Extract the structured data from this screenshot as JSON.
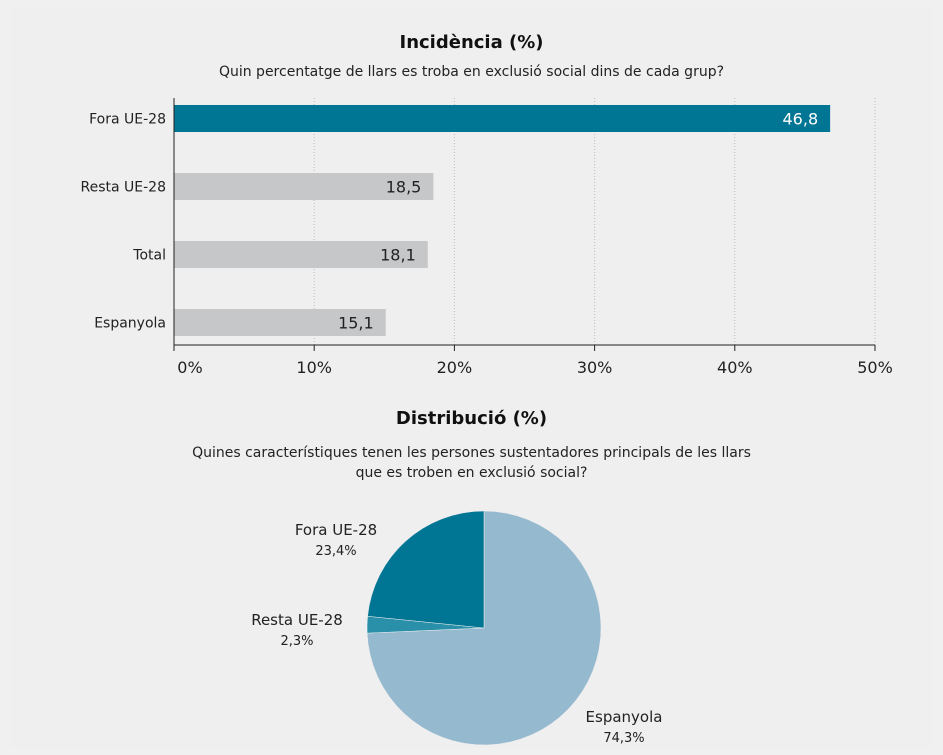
{
  "chart_data": [
    {
      "type": "bar",
      "orientation": "horizontal",
      "title": "Incidència (%)",
      "subtitle": "Quin percentatge de llars es troba en exclusió social dins de cada grup?",
      "categories": [
        "Fora UE-28",
        "Resta UE-28",
        "Total",
        "Espanyola"
      ],
      "values": [
        46.8,
        18.5,
        18.1,
        15.1
      ],
      "value_labels": [
        "46,8",
        "18,5",
        "18,1",
        "15,1"
      ],
      "xlim": [
        0,
        50
      ],
      "xticks": [
        0,
        10,
        20,
        30,
        40,
        50
      ],
      "xtick_labels": [
        "0%",
        "10%",
        "20%",
        "30%",
        "40%",
        "50%"
      ],
      "grid": "vertical dotted",
      "highlight_color": "#007694",
      "bar_color": "#c6c7c8"
    },
    {
      "type": "pie",
      "title": "Distribució (%)",
      "subtitle_lines": [
        "Quines característiques tenen les persones sustentadores principals de les llars",
        "que es troben en exclusió social?"
      ],
      "slices": [
        {
          "label": "Espanyola",
          "value": 74.3,
          "value_label": "74,3%",
          "color": "#95b9ce"
        },
        {
          "label": "Resta UE-28",
          "value": 2.3,
          "value_label": "2,3%",
          "color": "#2a8fa9"
        },
        {
          "label": "Fora UE-28",
          "value": 23.4,
          "value_label": "23,4%",
          "color": "#007694"
        }
      ]
    }
  ]
}
